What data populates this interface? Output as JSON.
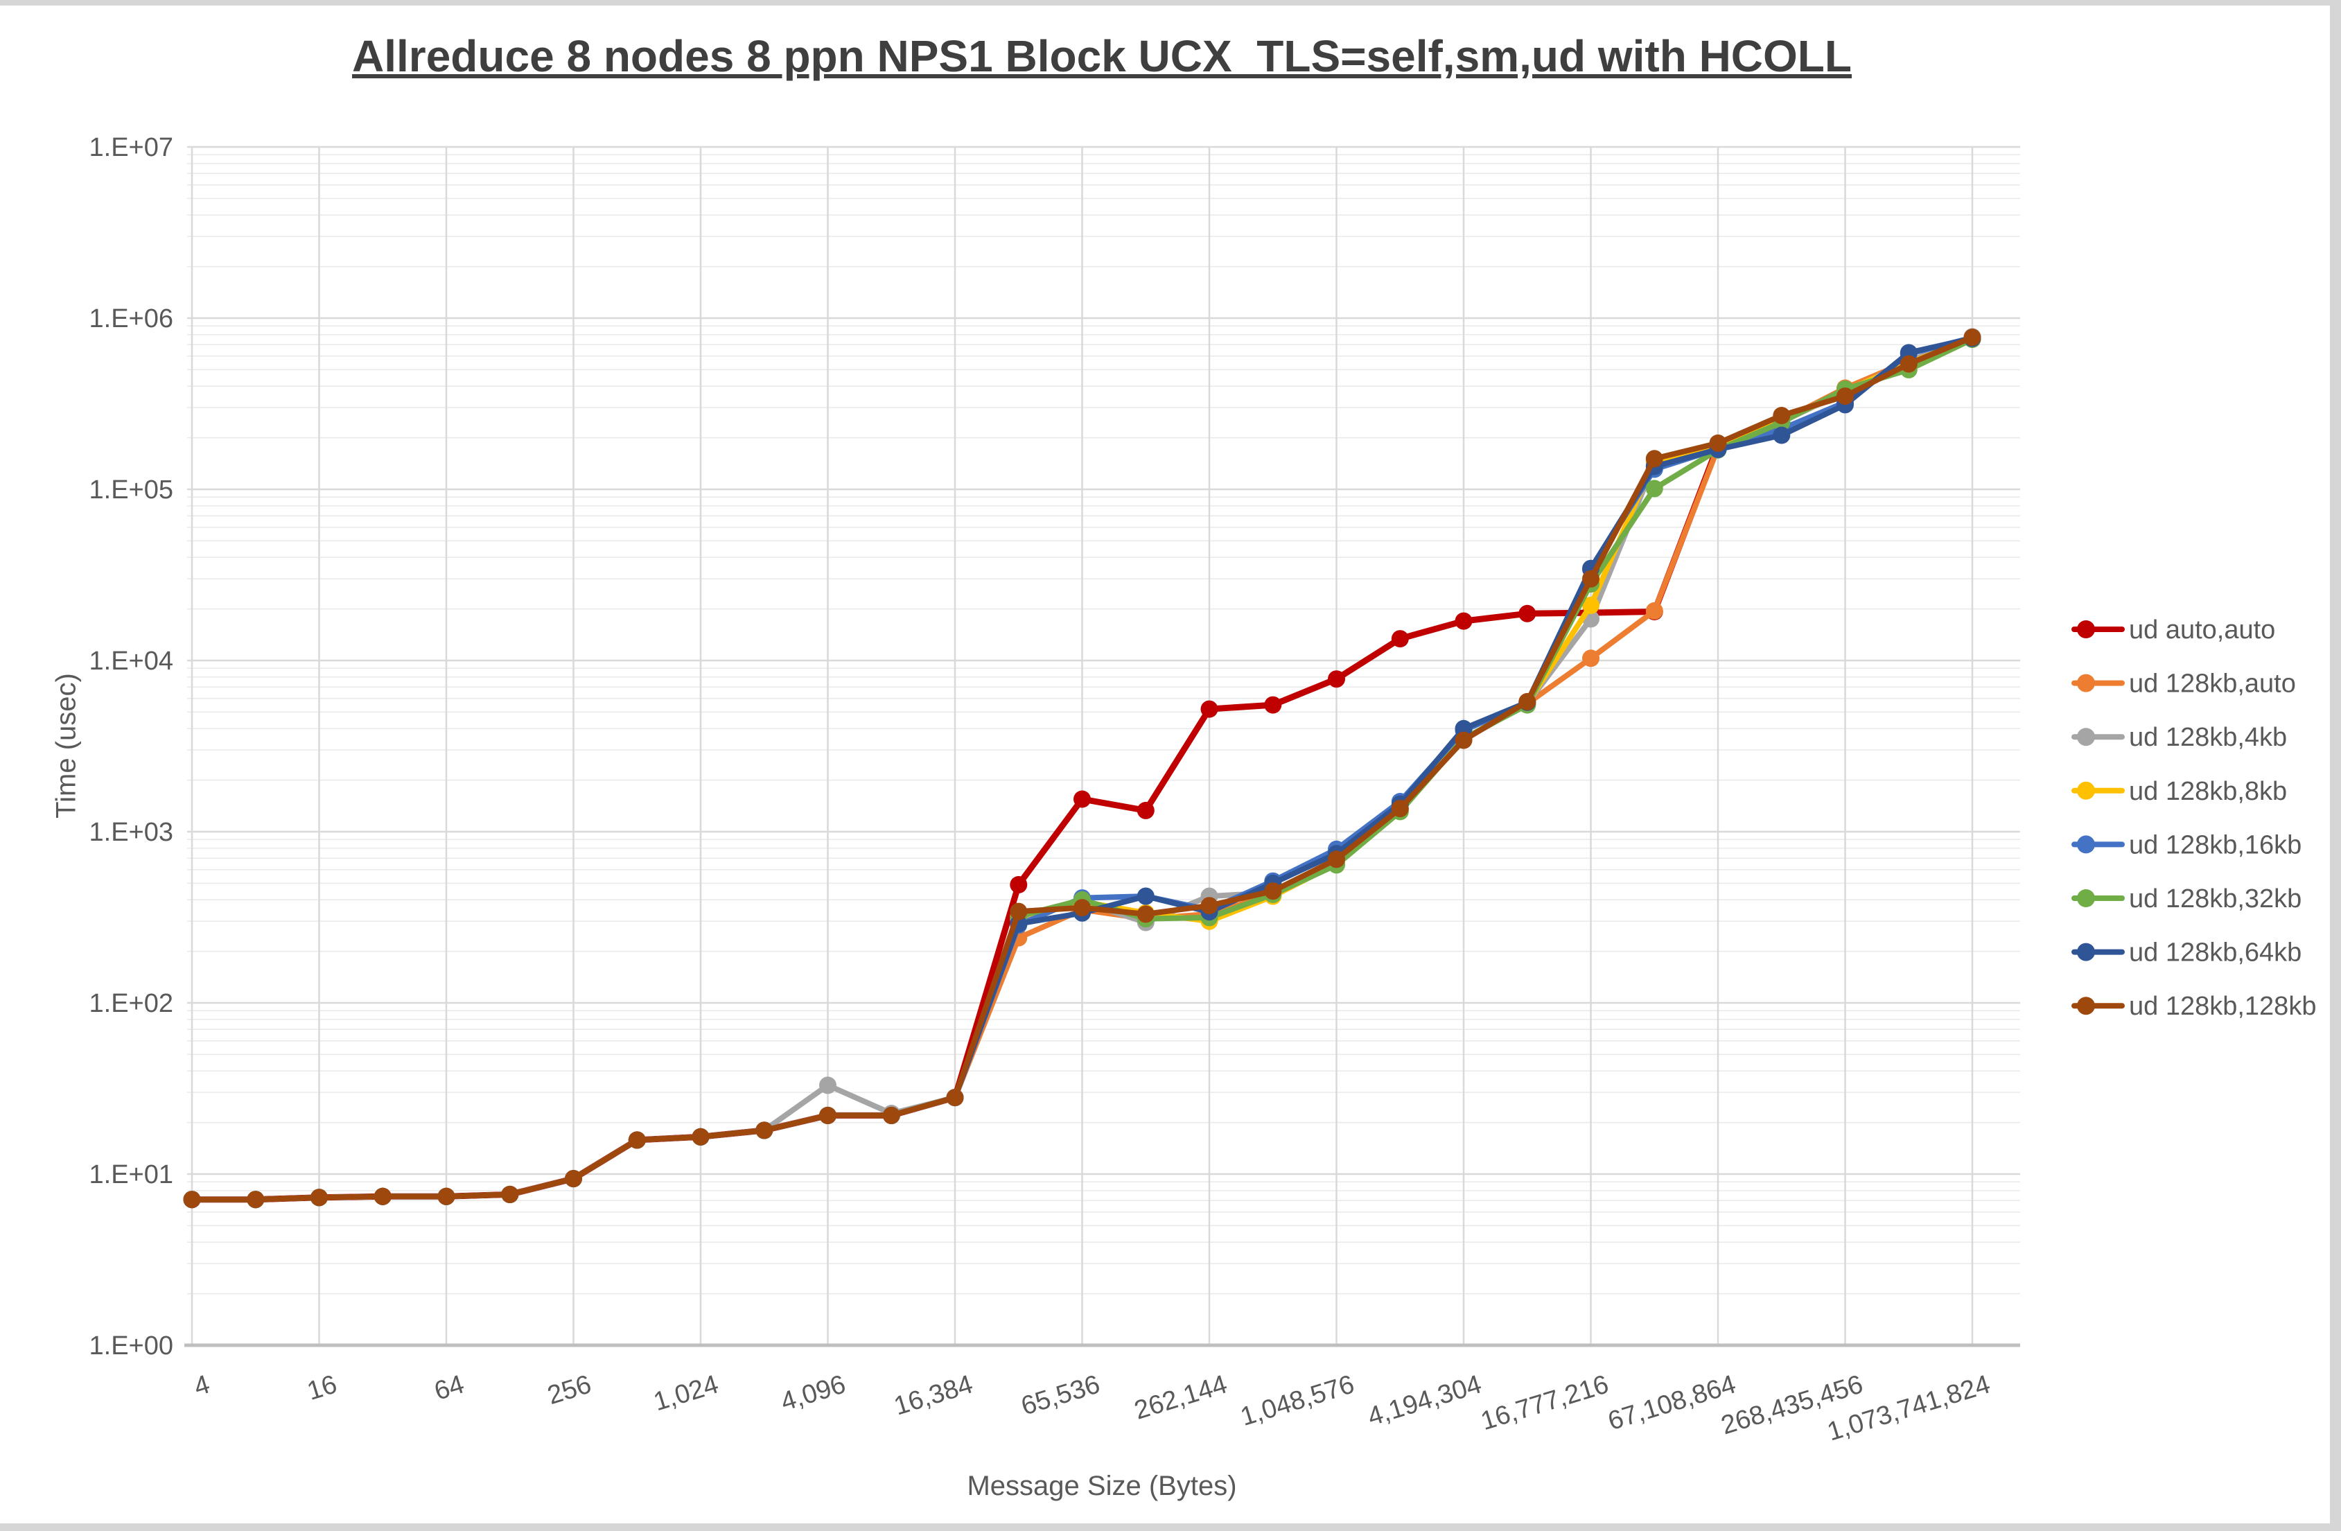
{
  "header": {
    "title": "Allreduce 8 nodes 8 ppn NPS1 Block UCX_TLS=self,sm,ud with HCOLL"
  },
  "chart_data": {
    "type": "line",
    "title": "Allreduce 8 nodes 8 ppn NPS1 Block UCX_TLS=self,sm,ud with HCOLL",
    "xlabel": "Message Size (Bytes)",
    "ylabel": "Time (usec)",
    "x_scale": "log2-categories",
    "x_categories": [
      4,
      8,
      16,
      32,
      64,
      128,
      256,
      512,
      1024,
      2048,
      4096,
      8192,
      16384,
      32768,
      65536,
      131072,
      262144,
      524288,
      1048576,
      2097152,
      4194304,
      8388608,
      16777216,
      33554432,
      67108864,
      134217728,
      268435456,
      536870912,
      1073741824
    ],
    "x_tick_labels": [
      "4",
      "16",
      "64",
      "256",
      "1,024",
      "4,096",
      "16,384",
      "65,536",
      "262,144",
      "1,048,576",
      "4,194,304",
      "16,777,216",
      "67,108,864",
      "268,435,456",
      "1,073,741,824"
    ],
    "y_tick_labels": [
      "1.E+00",
      "1.E+01",
      "1.E+02",
      "1.E+03",
      "1.E+04",
      "1.E+05",
      "1.E+06",
      "1.E+07"
    ],
    "y_axis": {
      "scale": "log10",
      "min": 1,
      "max": 10000000
    },
    "grid": {
      "major": true,
      "minor": true
    },
    "legend_position": "right",
    "axis_color": "#bfbfbf",
    "major_grid_color": "#d9d9d9",
    "minor_grid_color": "#e9e9e9",
    "series": [
      {
        "name": "ud auto,auto",
        "color": "#C00000",
        "values": [
          7.1,
          7.1,
          7.3,
          7.4,
          7.4,
          7.6,
          9.4,
          15.8,
          16.5,
          18,
          22,
          22,
          28,
          490,
          1550,
          1330,
          5200,
          5500,
          7800,
          13400,
          17000,
          18800,
          19000,
          19300,
          180000,
          null,
          null,
          null,
          null
        ]
      },
      {
        "name": "ud 128kb,auto",
        "color": "#ED7D31",
        "values": [
          7.1,
          7.1,
          7.3,
          7.4,
          7.4,
          7.6,
          9.4,
          15.8,
          16.5,
          18,
          22,
          22,
          28,
          240,
          350,
          310,
          330,
          430,
          670,
          1360,
          3450,
          5600,
          10300,
          19500,
          175000,
          252000,
          390000,
          560000,
          765000
        ]
      },
      {
        "name": "ud 128kb,4kb",
        "color": "#A5A5A5",
        "values": [
          7.1,
          7.1,
          7.3,
          7.4,
          7.4,
          7.6,
          9.4,
          15.8,
          16.5,
          18,
          33,
          22.6,
          28,
          310,
          390,
          295,
          420,
          440,
          660,
          1350,
          3450,
          5600,
          17500,
          143000,
          176000,
          248000,
          372000,
          556000,
          778000
        ]
      },
      {
        "name": "ud 128kb,8kb",
        "color": "#FFC000",
        "values": [
          7.1,
          7.1,
          7.3,
          7.4,
          7.4,
          7.6,
          9.4,
          15.8,
          16.5,
          18,
          22,
          22,
          28,
          320,
          390,
          335,
          300,
          420,
          650,
          1340,
          3480,
          5620,
          21000,
          148000,
          177000,
          250000,
          375000,
          548000,
          758000
        ]
      },
      {
        "name": "ud 128kb,16kb",
        "color": "#4472C4",
        "values": [
          7.1,
          7.1,
          7.3,
          7.4,
          7.4,
          7.6,
          9.4,
          15.8,
          16.5,
          18,
          22,
          22,
          28,
          285,
          410,
          420,
          350,
          515,
          790,
          1500,
          3900,
          5700,
          34000,
          131000,
          172000,
          225000,
          322000,
          618000,
          768000
        ]
      },
      {
        "name": "ud 128kb,32kb",
        "color": "#70AD47",
        "values": [
          7.1,
          7.1,
          7.3,
          7.4,
          7.4,
          7.6,
          9.4,
          15.8,
          16.5,
          18,
          22,
          22,
          28,
          320,
          400,
          310,
          315,
          430,
          640,
          1310,
          3500,
          5500,
          28000,
          101000,
          170000,
          246000,
          385000,
          500000,
          752000
        ]
      },
      {
        "name": "ud 128kb,64kb",
        "color": "#2F5597",
        "values": [
          7.1,
          7.1,
          7.3,
          7.4,
          7.4,
          7.6,
          9.4,
          15.8,
          16.5,
          18,
          22,
          22,
          28,
          290,
          335,
          420,
          340,
          500,
          745,
          1450,
          4000,
          5700,
          34500,
          136000,
          171000,
          207000,
          312000,
          628000,
          762000
        ]
      },
      {
        "name": "ud 128kb,128kb",
        "color": "#9E480E",
        "values": [
          7.1,
          7.1,
          7.3,
          7.4,
          7.4,
          7.6,
          9.4,
          15.8,
          16.5,
          18,
          22,
          22,
          28,
          342,
          360,
          330,
          370,
          450,
          690,
          1365,
          3420,
          5750,
          30000,
          151000,
          186000,
          270000,
          350000,
          540000,
          772000
        ]
      }
    ]
  }
}
